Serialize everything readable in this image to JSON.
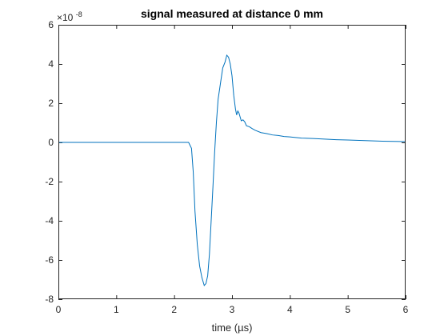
{
  "chart_data": {
    "type": "line",
    "title": "signal measured at distance 0 mm",
    "xlabel": "time (µs)",
    "ylabel": "",
    "xlim": [
      0,
      6
    ],
    "ylim": [
      -8,
      6
    ],
    "x_ticks": [
      0,
      1,
      2,
      3,
      4,
      5,
      6
    ],
    "y_ticks": [
      -8,
      -6,
      -4,
      -2,
      0,
      2,
      4,
      6
    ],
    "x_tick_labels": [
      "0",
      "1",
      "2",
      "3",
      "4",
      "5",
      "6"
    ],
    "y_tick_labels": [
      "-8",
      "-6",
      "-4",
      "-2",
      "0",
      "2",
      "4",
      "6"
    ],
    "y_exponent_label": {
      "base": "×10",
      "power": "-8"
    },
    "grid": false,
    "line_color": "#0072BD",
    "series": [
      {
        "x": [
          0,
          0.5,
          1.0,
          1.5,
          2.0,
          2.2,
          2.25,
          2.3,
          2.33,
          2.36,
          2.4,
          2.44,
          2.48,
          2.52,
          2.55,
          2.58,
          2.61,
          2.64,
          2.67,
          2.7,
          2.73,
          2.76,
          2.8,
          2.84,
          2.88,
          2.91,
          2.94,
          2.97,
          3.0,
          3.03,
          3.06,
          3.08,
          3.1,
          3.12,
          3.14,
          3.16,
          3.19,
          3.22,
          3.25,
          3.3,
          3.35,
          3.4,
          3.5,
          3.6,
          3.7,
          3.8,
          3.9,
          4.0,
          4.2,
          4.4,
          4.6,
          4.8,
          5.0,
          5.2,
          5.4,
          5.6,
          5.8,
          6.0
        ],
        "y": [
          0.0,
          0.0,
          0.0,
          0.0,
          0.0,
          0.0,
          0.0,
          -0.3,
          -1.5,
          -3.5,
          -5.2,
          -6.3,
          -6.9,
          -7.3,
          -7.2,
          -6.8,
          -5.7,
          -4.0,
          -2.3,
          -0.5,
          1.0,
          2.2,
          3.0,
          3.8,
          4.1,
          4.45,
          4.35,
          4.0,
          3.4,
          2.4,
          1.7,
          1.4,
          1.6,
          1.5,
          1.3,
          1.1,
          1.15,
          1.05,
          0.85,
          0.8,
          0.7,
          0.62,
          0.5,
          0.45,
          0.38,
          0.35,
          0.3,
          0.28,
          0.22,
          0.2,
          0.17,
          0.14,
          0.12,
          0.1,
          0.08,
          0.06,
          0.05,
          0.04
        ]
      }
    ]
  }
}
